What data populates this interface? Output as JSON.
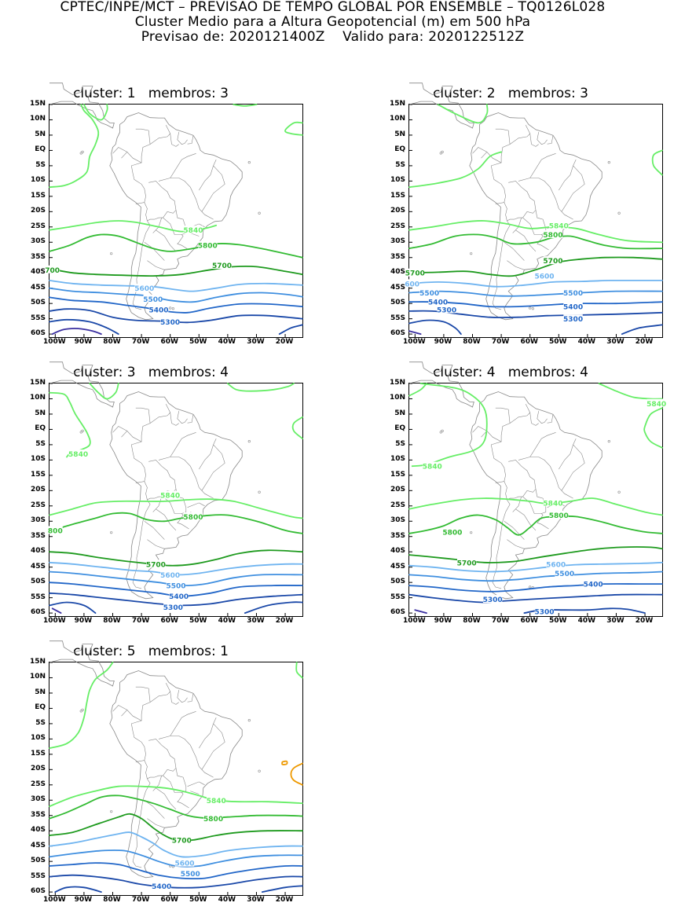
{
  "header": {
    "line1": "CPTEC/INPE/MCT – PREVISAO DE TEMPO GLOBAL POR ENSEMBLE – TQ0126L028",
    "line2": "Cluster Medio para a Altura Geopotencial (m) em 500 hPa",
    "line3": "Previsao de: 2020121400Z    Valido para: 2020122512Z"
  },
  "axes": {
    "lat_labels": [
      "15N",
      "10N",
      "5N",
      "EQ",
      "5S",
      "10S",
      "15S",
      "20S",
      "25S",
      "30S",
      "35S",
      "40S",
      "45S",
      "50S",
      "55S",
      "60S"
    ],
    "lon_labels": [
      "100W",
      "90W",
      "80W",
      "70W",
      "60W",
      "50W",
      "40W",
      "30W",
      "20W"
    ]
  },
  "colors": {
    "c5840": "#66ee66",
    "c5800": "#33bb33",
    "c5700": "#1e9a1e",
    "c5600": "#6fb4f0",
    "c5500": "#3f8fe0",
    "c5400": "#2166c8",
    "c5300": "#1a48a8",
    "c5200": "#3a2fa0",
    "warm": "#ee9900",
    "land": "#888888"
  },
  "panels": [
    {
      "title": "cluster: 1   membros: 3",
      "labels": [
        {
          "text": "5840",
          "lon": -52,
          "lat": -26,
          "c": "c5840"
        },
        {
          "text": "5800",
          "lon": -47,
          "lat": -31,
          "c": "c5800"
        },
        {
          "text": "5700",
          "lon": -42,
          "lat": -37.5,
          "c": "c5700"
        },
        {
          "text": "700",
          "lon": -101,
          "lat": -39,
          "c": "c5700"
        },
        {
          "text": "5600",
          "lon": -69,
          "lat": -45,
          "c": "c5600"
        },
        {
          "text": "5500",
          "lon": -66,
          "lat": -48.5,
          "c": "c5500"
        },
        {
          "text": "5400",
          "lon": -64,
          "lat": -52,
          "c": "c5400"
        },
        {
          "text": "5300",
          "lon": -60,
          "lat": -56,
          "c": "c5400"
        }
      ]
    },
    {
      "title": "cluster: 2   membros: 3",
      "labels": [
        {
          "text": "5840",
          "lon": -50,
          "lat": -24.5,
          "c": "c5840"
        },
        {
          "text": "5800",
          "lon": -52,
          "lat": -27.5,
          "c": "c5800"
        },
        {
          "text": "5700",
          "lon": -52,
          "lat": -36,
          "c": "c5700"
        },
        {
          "text": "5700",
          "lon": -100,
          "lat": -40,
          "c": "c5700"
        },
        {
          "text": "600",
          "lon": -101,
          "lat": -43.5,
          "c": "c5600"
        },
        {
          "text": "5600",
          "lon": -55,
          "lat": -41,
          "c": "c5600"
        },
        {
          "text": "5500",
          "lon": -95,
          "lat": -46.5,
          "c": "c5500"
        },
        {
          "text": "5500",
          "lon": -45,
          "lat": -46.5,
          "c": "c5500"
        },
        {
          "text": "5400",
          "lon": -92,
          "lat": -49.5,
          "c": "c5400"
        },
        {
          "text": "5400",
          "lon": -45,
          "lat": -51,
          "c": "c5400"
        },
        {
          "text": "5300",
          "lon": -89,
          "lat": -52,
          "c": "c5400"
        },
        {
          "text": "5300",
          "lon": -45,
          "lat": -55,
          "c": "c5400"
        }
      ]
    },
    {
      "title": "cluster: 3   membros: 4",
      "labels": [
        {
          "text": "5840",
          "lon": -92,
          "lat": -8,
          "c": "c5840"
        },
        {
          "text": "5840",
          "lon": -60,
          "lat": -21.5,
          "c": "c5840"
        },
        {
          "text": "5800",
          "lon": -52,
          "lat": -28.5,
          "c": "c5800"
        },
        {
          "text": "800",
          "lon": -100,
          "lat": -33,
          "c": "c5800"
        },
        {
          "text": "5700",
          "lon": -65,
          "lat": -44,
          "c": "c5700"
        },
        {
          "text": "5600",
          "lon": -60,
          "lat": -47.5,
          "c": "c5600"
        },
        {
          "text": "5500",
          "lon": -58,
          "lat": -51,
          "c": "c5500"
        },
        {
          "text": "5400",
          "lon": -57,
          "lat": -54.5,
          "c": "c5400"
        },
        {
          "text": "5300",
          "lon": -59,
          "lat": -58,
          "c": "c5400"
        }
      ]
    },
    {
      "title": "cluster: 4   membros: 4",
      "labels": [
        {
          "text": "5840",
          "lon": -16,
          "lat": 8.5,
          "c": "c5840"
        },
        {
          "text": "5840",
          "lon": -94,
          "lat": -12,
          "c": "c5840"
        },
        {
          "text": "5840",
          "lon": -52,
          "lat": -24,
          "c": "c5840"
        },
        {
          "text": "5800",
          "lon": -50,
          "lat": -28,
          "c": "c5800"
        },
        {
          "text": "5800",
          "lon": -87,
          "lat": -33.5,
          "c": "c5800"
        },
        {
          "text": "5700",
          "lon": -82,
          "lat": -43.5,
          "c": "c5700"
        },
        {
          "text": "5600",
          "lon": -51,
          "lat": -44,
          "c": "c5600"
        },
        {
          "text": "5500",
          "lon": -48,
          "lat": -47,
          "c": "c5500"
        },
        {
          "text": "5400",
          "lon": -38,
          "lat": -50.5,
          "c": "c5400"
        },
        {
          "text": "5300",
          "lon": -73,
          "lat": -55.5,
          "c": "c5400"
        },
        {
          "text": "5300",
          "lon": -55,
          "lat": -59.5,
          "c": "c5400"
        }
      ]
    },
    {
      "title": "cluster: 5   membros: 1",
      "labels": [
        {
          "text": "5840",
          "lon": -44,
          "lat": -30,
          "c": "c5840"
        },
        {
          "text": "5800",
          "lon": -45,
          "lat": -36,
          "c": "c5800"
        },
        {
          "text": "5700",
          "lon": -56,
          "lat": -43,
          "c": "c5700"
        },
        {
          "text": "5600",
          "lon": -55,
          "lat": -50.5,
          "c": "c5600"
        },
        {
          "text": "5500",
          "lon": -53,
          "lat": -54,
          "c": "c5500"
        },
        {
          "text": "5400",
          "lon": -63,
          "lat": -58,
          "c": "c5400"
        }
      ]
    }
  ]
}
